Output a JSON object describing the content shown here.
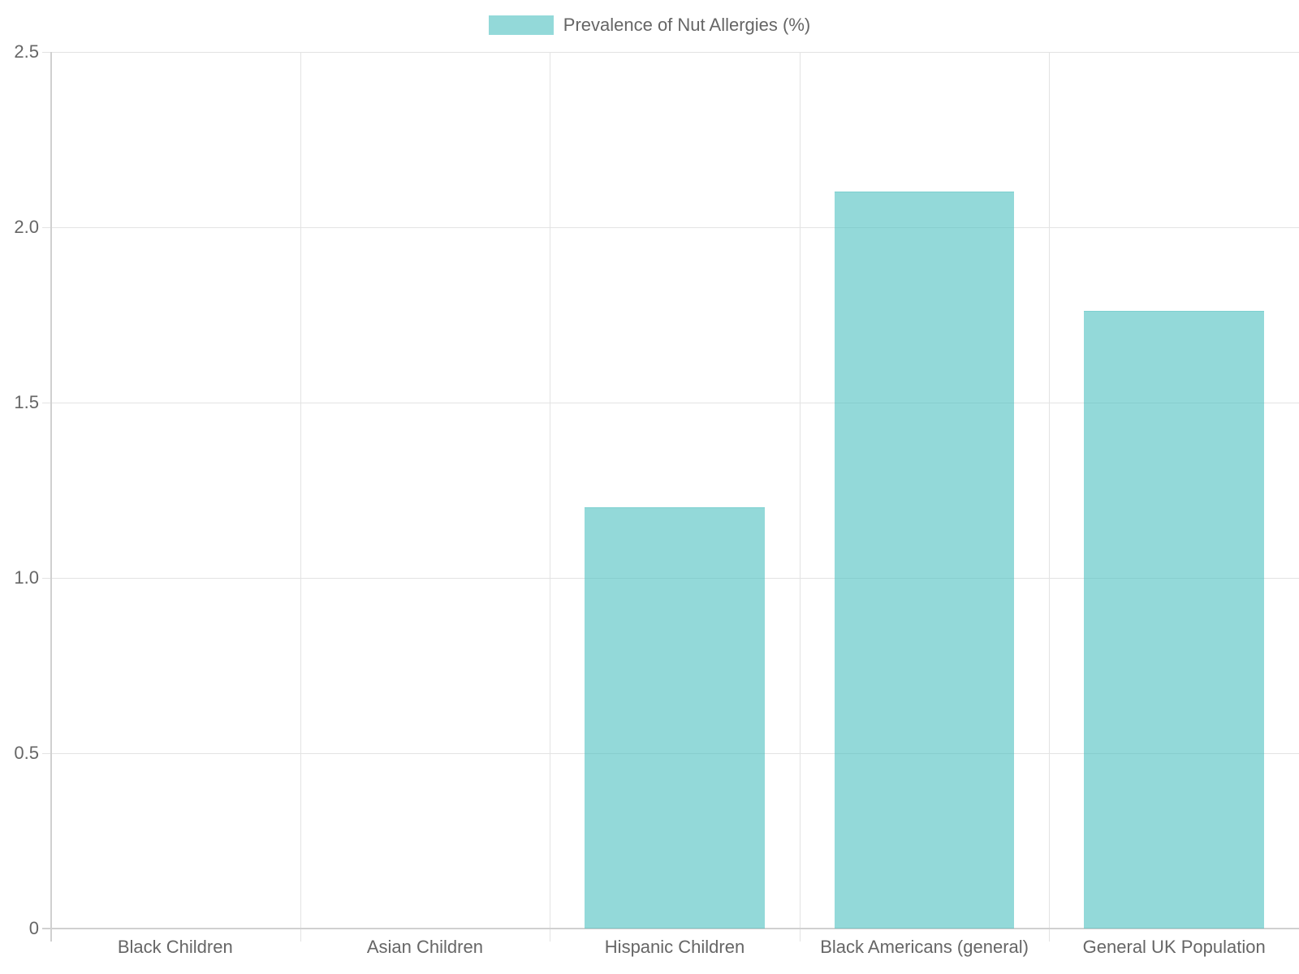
{
  "legend": {
    "label": "Prevalence of Nut Allergies (%)",
    "color": "#93d9d9"
  },
  "y_ticks": [
    "0",
    "0.5",
    "1.0",
    "1.5",
    "2.0",
    "2.5"
  ],
  "x_ticks": [
    "Black Children",
    "Asian Children",
    "Hispanic Children",
    "Black Americans (general)",
    "General UK Population"
  ],
  "chart_data": {
    "type": "bar",
    "title": "",
    "categories": [
      "Black Children",
      "Asian Children",
      "Hispanic Children",
      "Black Americans (general)",
      "General UK Population"
    ],
    "series": [
      {
        "name": "Prevalence of Nut Allergies (%)",
        "values": [
          0,
          0,
          1.2,
          2.1,
          1.76
        ],
        "color": "#93d9d9"
      }
    ],
    "xlabel": "",
    "ylabel": "",
    "ylim": [
      0,
      2.5
    ],
    "yticks": [
      0,
      0.5,
      1.0,
      1.5,
      2.0,
      2.5
    ],
    "grid": true,
    "legend_position": "top"
  }
}
